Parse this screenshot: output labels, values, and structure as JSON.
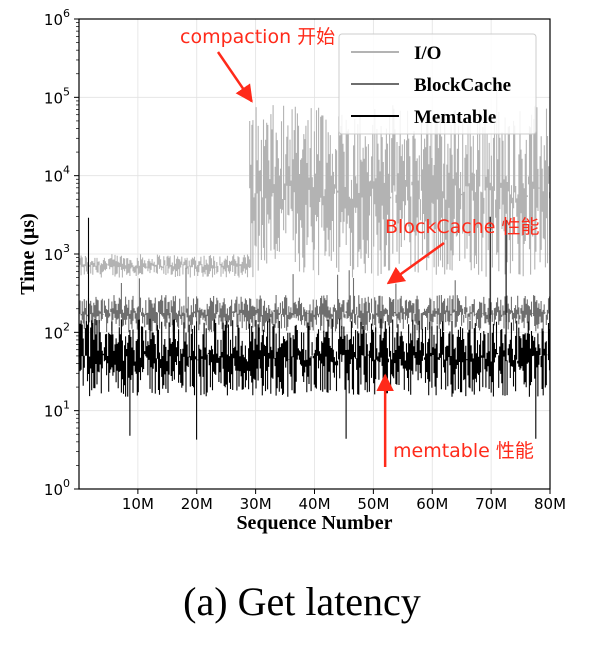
{
  "chart_data": {
    "type": "line",
    "title": "",
    "xlabel": "Sequence Number",
    "ylabel": "Time (μs)",
    "x_unit": "M",
    "xlim": [
      0,
      80
    ],
    "x_ticks": [
      10,
      20,
      30,
      40,
      50,
      60,
      70,
      80
    ],
    "x_tick_labels": [
      "10M",
      "20M",
      "30M",
      "40M",
      "50M",
      "60M",
      "70M",
      "80M"
    ],
    "y_scale": "log",
    "ylim": [
      1,
      1000000
    ],
    "y_ticks": [
      1,
      10,
      100,
      1000,
      10000,
      100000,
      1000000
    ],
    "y_tick_base": "10",
    "y_tick_exponents": [
      "0",
      "1",
      "2",
      "3",
      "4",
      "5",
      "6"
    ],
    "grid": true,
    "legend_position": "top-right",
    "series": [
      {
        "name": "I/O",
        "color": "#b3b3b3",
        "segments": [
          {
            "x_range": [
              0,
              29
            ],
            "typical_range": [
              500,
              1000
            ],
            "spikes": [
              3000
            ]
          },
          {
            "x_range": [
              29,
              80
            ],
            "typical_range": [
              500,
              80000
            ],
            "spikes": [
              150000
            ]
          }
        ]
      },
      {
        "name": "BlockCache",
        "color": "#6e6e6e",
        "segments": [
          {
            "x_range": [
              0,
              80
            ],
            "typical_range": [
              100,
              300
            ],
            "spikes": [
              1000
            ]
          }
        ]
      },
      {
        "name": "Memtable",
        "color": "#000000",
        "segments": [
          {
            "x_range": [
              0,
              80
            ],
            "typical_range": [
              15,
              150
            ],
            "spikes": [
              3000,
              5
            ]
          }
        ]
      }
    ],
    "annotations": [
      {
        "text": "compaction 开始",
        "color": "#ff2a1a",
        "points_to": {
          "x": 29,
          "y": 100000
        }
      },
      {
        "text": "BlockCache 性能",
        "color": "#ff2a1a",
        "points_to": {
          "x": 52,
          "y": 400
        }
      },
      {
        "text": "memtable 性能",
        "color": "#ff2a1a",
        "points_to": {
          "x": 52,
          "y": 30
        }
      }
    ]
  },
  "caption": "(a) Get latency"
}
